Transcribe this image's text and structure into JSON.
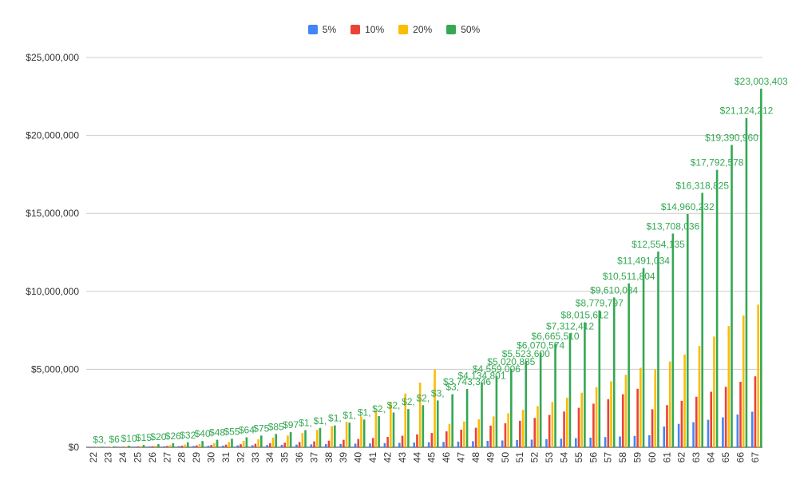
{
  "chart_data": {
    "type": "bar",
    "title": "",
    "xlabel": "",
    "ylabel": "",
    "ylim": [
      0,
      25000000
    ],
    "yticks": [
      "$0",
      "$5,000,000",
      "$10,000,000",
      "$15,000,000",
      "$20,000,000",
      "$25,000,000"
    ],
    "legend_position": "top-center",
    "categories": [
      "22",
      "23",
      "24",
      "25",
      "26",
      "27",
      "28",
      "29",
      "30",
      "31",
      "32",
      "33",
      "34",
      "35",
      "36",
      "37",
      "38",
      "39",
      "40",
      "41",
      "42",
      "43",
      "44",
      "45",
      "46",
      "47",
      "48",
      "49",
      "50",
      "51",
      "52",
      "53",
      "54",
      "55",
      "56",
      "57",
      "58",
      "59",
      "60",
      "61",
      "62",
      "63",
      "64",
      "65",
      "66",
      "67"
    ],
    "series": [
      {
        "name": "5%",
        "color": "#4285f4",
        "values": [
          12000,
          22000,
          32000,
          42000,
          52000,
          62000,
          73000,
          84000,
          95000,
          107000,
          119000,
          131000,
          144000,
          157000,
          171000,
          185000,
          200000,
          215000,
          231000,
          248000,
          265000,
          283000,
          302000,
          322000,
          343000,
          365000,
          388000,
          412000,
          437000,
          463000,
          491000,
          520000,
          551000,
          583000,
          617000,
          653000,
          690000,
          730000,
          772000,
          1330000,
          1500000,
          1610000,
          1760000,
          1920000,
          2100000,
          2280000
        ]
      },
      {
        "name": "10%",
        "color": "#ea4335",
        "values": [
          14000,
          26000,
          39000,
          53000,
          68000,
          84000,
          102000,
          122000,
          144000,
          168000,
          195000,
          225000,
          257000,
          293000,
          332000,
          375000,
          423000,
          475000,
          532000,
          595000,
          664000,
          740000,
          824000,
          916000,
          1018000,
          1129000,
          1252000,
          1387000,
          1535000,
          1698000,
          1878000,
          2075000,
          2293000,
          2532000,
          2795000,
          3084000,
          3402000,
          3752000,
          2440000,
          2700000,
          2980000,
          3240000,
          3560000,
          3880000,
          4200000,
          4550000
        ]
      },
      {
        "name": "20%",
        "color": "#fbbc04",
        "values": [
          18000,
          33000,
          51000,
          73000,
          99000,
          131000,
          169000,
          214000,
          269000,
          334000,
          413000,
          507000,
          620000,
          756000,
          919000,
          1115000,
          1350000,
          1632000,
          1970000,
          2375000,
          2862000,
          3446000,
          4146000,
          4987000,
          1500000,
          1650000,
          1800000,
          1980000,
          2180000,
          2400000,
          2640000,
          2900000,
          3180000,
          3500000,
          3850000,
          4230000,
          4650000,
          5100000,
          5000000,
          5500000,
          5950000,
          6500000,
          7100000,
          7780000,
          8450000,
          9150000
        ]
      },
      {
        "name": "50%",
        "color": "#34a853",
        "values": [
          30000,
          60000,
          100000,
          150000,
          200000,
          260000,
          320000,
          400000,
          480000,
          550000,
          640000,
          750000,
          850000,
          970000,
          1100000,
          1240000,
          1400000,
          1580000,
          1780000,
          2000000,
          2230000,
          2450000,
          2700000,
          3000000,
          3400000,
          3743346,
          4134801,
          4559006,
          5020885,
          5523600,
          6070574,
          6665510,
          7312412,
          8015612,
          8779797,
          9610034,
          10511804,
          11491034,
          12554135,
          13708036,
          14960232,
          16318825,
          17792578,
          19390960,
          21124212,
          23003403
        ]
      }
    ],
    "data_labels_50": [
      "$3,",
      "$6",
      "$10",
      "$15",
      "$20",
      "$26",
      "$32",
      "$40",
      "$48",
      "$55",
      "$64",
      "$75",
      "$85",
      "$97",
      "$1,",
      "$1,",
      "$1,",
      "$1,",
      "$1,",
      "$2,",
      "$2,",
      "$2,",
      "$2,",
      "$3,",
      "$3,",
      "$3,743,346",
      "$4,134,801",
      "$4,559,006",
      "$5,020,885",
      "$5,523,600",
      "$6,070,574",
      "$6,665,510",
      "$7,312,412",
      "$8,015,612",
      "$8,779,797",
      "$9,610,034",
      "$10,511,804",
      "$11,491,034",
      "$12,554,135",
      "$13,708,036",
      "$14,960,232",
      "$16,318,825",
      "$17,792,578",
      "$19,390,960",
      "$21,124,212",
      "$23,003,403"
    ]
  }
}
